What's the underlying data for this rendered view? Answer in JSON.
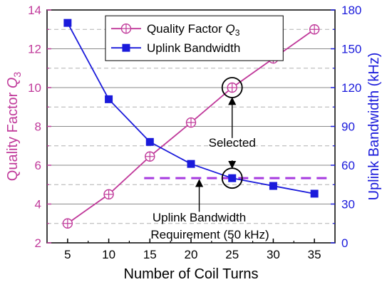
{
  "chart_data": {
    "type": "line",
    "x": [
      5,
      10,
      15,
      20,
      25,
      30,
      35
    ],
    "xlabel": "Number of Coil Turns",
    "xlim": [
      2.5,
      37.5
    ],
    "xticks": [
      5,
      10,
      15,
      20,
      25,
      30,
      35
    ],
    "y_left": {
      "label_main": "Quality Factor ",
      "label_symbol": "Q",
      "label_sub": "3",
      "ylim": [
        2,
        14
      ],
      "ticks": [
        2,
        4,
        6,
        8,
        10,
        12,
        14
      ],
      "color": "#c0399a"
    },
    "y_right": {
      "label": "Uplink Bandwidth (kHz)",
      "ylim": [
        0,
        180
      ],
      "ticks": [
        0,
        30,
        60,
        90,
        120,
        150,
        180
      ],
      "color": "#1a1adb"
    },
    "series": [
      {
        "name": "Quality Factor ",
        "name_symbol": "Q",
        "name_sub": "3",
        "axis": "left",
        "marker": "circle-plus",
        "color": "#c0399a",
        "values": [
          3.0,
          4.5,
          6.45,
          8.2,
          10.0,
          11.5,
          13.0
        ]
      },
      {
        "name": "Uplink Bandwidth",
        "axis": "right",
        "marker": "square",
        "color": "#1a1adb",
        "values": [
          170,
          111,
          78,
          61,
          50,
          44,
          38
        ]
      }
    ],
    "requirement": {
      "value": 50,
      "x_start": 15,
      "x_end": 37.5,
      "color": "#a63ae0",
      "label_line1": "Uplink Bandwidth",
      "label_line2": "Requirement (50 kHz)"
    },
    "selected_label": "Selected",
    "selected_x": 25,
    "grid": true,
    "legend_position": "top-left"
  }
}
